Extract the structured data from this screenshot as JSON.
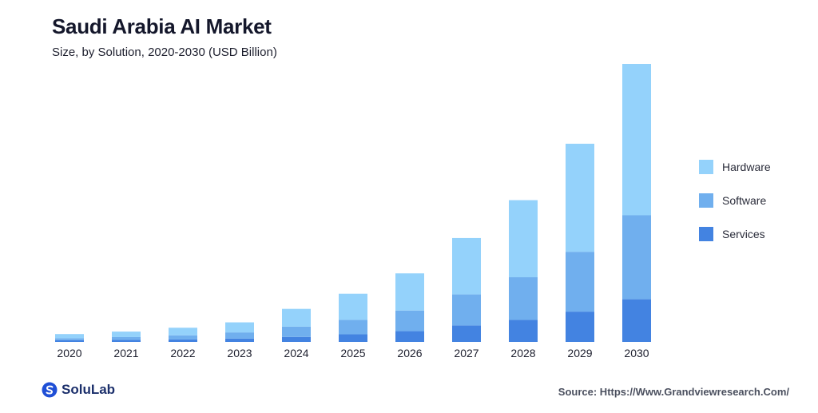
{
  "header": {
    "title": "Saudi Arabia AI Market",
    "subtitle": "Size, by Solution, 2020-2030 (USD Billion)"
  },
  "colors": {
    "hardware": "#94d2fb",
    "software": "#70afee",
    "services": "#4383e1"
  },
  "chart_data": {
    "type": "bar",
    "stacked": true,
    "categories": [
      "2020",
      "2021",
      "2022",
      "2023",
      "2024",
      "2025",
      "2026",
      "2027",
      "2028",
      "2029",
      "2030"
    ],
    "series": [
      {
        "name": "Services",
        "values": [
          0.12,
          0.15,
          0.18,
          0.24,
          0.36,
          0.55,
          0.78,
          1.2,
          1.6,
          2.2,
          3.1
        ]
      },
      {
        "name": "Software",
        "values": [
          0.15,
          0.2,
          0.3,
          0.45,
          0.75,
          1.05,
          1.5,
          2.25,
          3.1,
          4.35,
          6.1
        ]
      },
      {
        "name": "Hardware",
        "values": [
          0.3,
          0.4,
          0.55,
          0.73,
          1.29,
          1.9,
          2.7,
          4.1,
          5.6,
          7.85,
          11.0
        ]
      }
    ],
    "ylim": [
      0,
      20.2
    ],
    "grid": false,
    "legend_position": "right"
  },
  "legend": {
    "items": [
      "Hardware",
      "Software",
      "Services"
    ]
  },
  "footer": {
    "brand": "SoluLab",
    "source": "Source: Https://Www.Grandviewresearch.Com/"
  }
}
